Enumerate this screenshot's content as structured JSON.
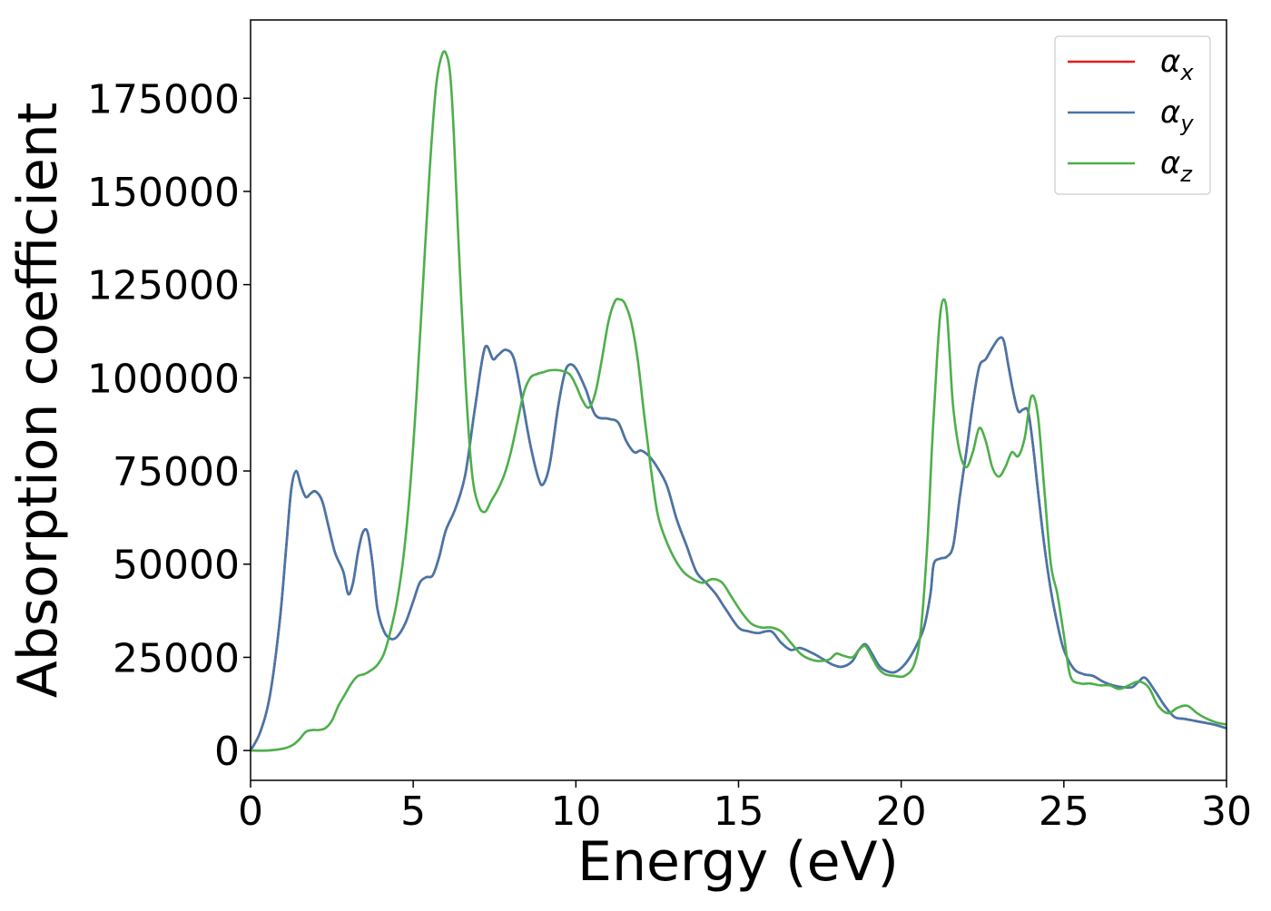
{
  "chart_data": {
    "type": "line",
    "title": "",
    "xlabel": "Energy (eV)",
    "ylabel": "Absorption coefficient",
    "xlim": [
      0,
      30
    ],
    "ylim": [
      -8000,
      196000
    ],
    "xticks": [
      0,
      5,
      10,
      15,
      20,
      25,
      30
    ],
    "yticks": [
      0,
      25000,
      50000,
      75000,
      100000,
      125000,
      150000,
      175000
    ],
    "grid": false,
    "legend_position": "top-right",
    "series": [
      {
        "name": "αx",
        "symbol": "α",
        "subscript": "x",
        "color": "#e41a1c",
        "x": [
          0,
          0.3,
          0.6,
          0.9,
          1.1,
          1.25,
          1.4,
          1.55,
          1.7,
          1.85,
          2.0,
          2.2,
          2.4,
          2.6,
          2.85,
          3.0,
          3.15,
          3.3,
          3.45,
          3.6,
          3.75,
          3.9,
          4.1,
          4.3,
          4.5,
          4.75,
          5.0,
          5.2,
          5.4,
          5.6,
          5.8,
          6.0,
          6.3,
          6.6,
          6.9,
          7.2,
          7.45,
          7.6,
          7.85,
          8.1,
          8.35,
          8.6,
          8.85,
          9.0,
          9.2,
          9.45,
          9.65,
          9.8,
          10.0,
          10.3,
          10.6,
          11.0,
          11.3,
          11.55,
          11.8,
          12.0,
          12.25,
          12.5,
          12.8,
          13.1,
          13.4,
          13.7,
          14.0,
          14.3,
          14.6,
          15.0,
          15.3,
          15.6,
          16.0,
          16.3,
          16.6,
          16.9,
          17.3,
          17.6,
          17.9,
          18.2,
          18.5,
          18.7,
          18.9,
          19.1,
          19.3,
          19.5,
          19.8,
          20.1,
          20.4,
          20.7,
          20.9,
          21.0,
          21.2,
          21.4,
          21.6,
          21.8,
          22.0,
          22.2,
          22.4,
          22.6,
          22.8,
          23.0,
          23.15,
          23.3,
          23.45,
          23.6,
          23.75,
          23.9,
          24.05,
          24.2,
          24.4,
          24.6,
          24.8,
          25.0,
          25.3,
          25.6,
          25.9,
          26.2,
          26.5,
          26.8,
          27.1,
          27.3,
          27.5,
          27.8,
          28.1,
          28.4,
          28.7,
          29.0,
          29.3,
          29.6,
          30.0
        ],
        "values": [
          0,
          5000,
          15000,
          35000,
          55000,
          70000,
          75000,
          71000,
          68000,
          69000,
          69500,
          67000,
          60000,
          53000,
          48000,
          42000,
          45000,
          53000,
          58500,
          58500,
          50000,
          38000,
          32000,
          30000,
          30500,
          34000,
          40000,
          45000,
          46500,
          47000,
          52000,
          59000,
          65000,
          74000,
          92000,
          108000,
          105000,
          106000,
          107500,
          105000,
          94000,
          82000,
          73000,
          71500,
          77000,
          92000,
          101000,
          103500,
          102500,
          97000,
          90000,
          89000,
          88000,
          83000,
          80000,
          80500,
          79000,
          76000,
          71000,
          62000,
          55000,
          48000,
          45000,
          42000,
          38000,
          33000,
          32000,
          31500,
          32000,
          29000,
          27000,
          27500,
          26000,
          24500,
          23000,
          22500,
          24000,
          27000,
          28500,
          26000,
          23000,
          21500,
          21000,
          23000,
          27000,
          33000,
          42000,
          50000,
          51500,
          52000,
          55000,
          68000,
          80000,
          93000,
          103000,
          105000,
          108000,
          110500,
          110000,
          103000,
          96000,
          91000,
          91500,
          91000,
          82000,
          70000,
          55000,
          43000,
          34000,
          27000,
          22000,
          20500,
          20000,
          18500,
          17500,
          17000,
          17000,
          18500,
          19500,
          16000,
          12000,
          9000,
          8500,
          8000,
          7500,
          7000,
          6000
        ],
        "visible_under_blue": true
      },
      {
        "name": "αy",
        "symbol": "α",
        "subscript": "y",
        "color": "#4477aa",
        "x": [
          0,
          0.3,
          0.6,
          0.9,
          1.1,
          1.25,
          1.4,
          1.55,
          1.7,
          1.85,
          2.0,
          2.2,
          2.4,
          2.6,
          2.85,
          3.0,
          3.15,
          3.3,
          3.45,
          3.6,
          3.75,
          3.9,
          4.1,
          4.3,
          4.5,
          4.75,
          5.0,
          5.2,
          5.4,
          5.6,
          5.8,
          6.0,
          6.3,
          6.6,
          6.9,
          7.2,
          7.45,
          7.6,
          7.85,
          8.1,
          8.35,
          8.6,
          8.85,
          9.0,
          9.2,
          9.45,
          9.65,
          9.8,
          10.0,
          10.3,
          10.6,
          11.0,
          11.3,
          11.55,
          11.8,
          12.0,
          12.25,
          12.5,
          12.8,
          13.1,
          13.4,
          13.7,
          14.0,
          14.3,
          14.6,
          15.0,
          15.3,
          15.6,
          16.0,
          16.3,
          16.6,
          16.9,
          17.3,
          17.6,
          17.9,
          18.2,
          18.5,
          18.7,
          18.9,
          19.1,
          19.3,
          19.5,
          19.8,
          20.1,
          20.4,
          20.7,
          20.9,
          21.0,
          21.2,
          21.4,
          21.6,
          21.8,
          22.0,
          22.2,
          22.4,
          22.6,
          22.8,
          23.0,
          23.15,
          23.3,
          23.45,
          23.6,
          23.75,
          23.9,
          24.05,
          24.2,
          24.4,
          24.6,
          24.8,
          25.0,
          25.3,
          25.6,
          25.9,
          26.2,
          26.5,
          26.8,
          27.1,
          27.3,
          27.5,
          27.8,
          28.1,
          28.4,
          28.7,
          29.0,
          29.3,
          29.6,
          30.0
        ],
        "values": [
          0,
          5000,
          15000,
          35000,
          55000,
          70000,
          75000,
          71000,
          68000,
          69000,
          69500,
          67000,
          60000,
          53000,
          48000,
          42000,
          45000,
          53000,
          58500,
          58500,
          50000,
          38000,
          32000,
          30000,
          30500,
          34000,
          40000,
          45000,
          46500,
          47000,
          52000,
          59000,
          65000,
          74000,
          92000,
          108000,
          105000,
          106000,
          107500,
          105000,
          94000,
          82000,
          73000,
          71500,
          77000,
          92000,
          101000,
          103500,
          102500,
          97000,
          90000,
          89000,
          88000,
          83000,
          80000,
          80500,
          79000,
          76000,
          71000,
          62000,
          55000,
          48000,
          45000,
          42000,
          38000,
          33000,
          32000,
          31500,
          32000,
          29000,
          27000,
          27500,
          26000,
          24500,
          23000,
          22500,
          24000,
          27000,
          28500,
          26000,
          23000,
          21500,
          21000,
          23000,
          27000,
          33000,
          42000,
          50000,
          51500,
          52000,
          55000,
          68000,
          80000,
          93000,
          103000,
          105000,
          108000,
          110500,
          110000,
          103000,
          96000,
          91000,
          91500,
          91000,
          82000,
          70000,
          55000,
          43000,
          34000,
          27000,
          22000,
          20500,
          20000,
          18500,
          17500,
          17000,
          17000,
          18500,
          19500,
          16000,
          12000,
          9000,
          8500,
          8000,
          7500,
          7000,
          6000
        ]
      },
      {
        "name": "αz",
        "symbol": "α",
        "subscript": "z",
        "color": "#4daf4a",
        "x": [
          0,
          0.5,
          1.0,
          1.3,
          1.5,
          1.7,
          1.9,
          2.1,
          2.3,
          2.5,
          2.7,
          2.9,
          3.1,
          3.3,
          3.5,
          3.7,
          3.9,
          4.1,
          4.3,
          4.5,
          4.7,
          4.9,
          5.1,
          5.3,
          5.5,
          5.7,
          5.9,
          6.05,
          6.15,
          6.25,
          6.4,
          6.6,
          6.8,
          7.0,
          7.2,
          7.4,
          7.6,
          7.8,
          8.0,
          8.2,
          8.4,
          8.6,
          8.8,
          9.0,
          9.2,
          9.5,
          9.8,
          10.0,
          10.2,
          10.4,
          10.6,
          10.8,
          11.0,
          11.2,
          11.35,
          11.5,
          11.7,
          11.9,
          12.1,
          12.3,
          12.5,
          12.7,
          13.0,
          13.3,
          13.6,
          13.9,
          14.2,
          14.5,
          14.8,
          15.1,
          15.4,
          15.7,
          16.0,
          16.3,
          16.6,
          16.9,
          17.2,
          17.5,
          17.8,
          18.0,
          18.2,
          18.5,
          18.7,
          18.9,
          19.1,
          19.3,
          19.5,
          19.8,
          20.1,
          20.4,
          20.6,
          20.8,
          20.95,
          21.1,
          21.2,
          21.3,
          21.4,
          21.5,
          21.6,
          21.8,
          22.0,
          22.2,
          22.4,
          22.6,
          22.8,
          23.0,
          23.2,
          23.4,
          23.6,
          23.8,
          24.0,
          24.2,
          24.4,
          24.6,
          24.8,
          25.0,
          25.2,
          25.5,
          25.8,
          26.1,
          26.4,
          26.7,
          27.0,
          27.3,
          27.6,
          27.9,
          28.2,
          28.5,
          28.8,
          29.1,
          29.4,
          29.7,
          30.0
        ],
        "values": [
          0,
          0,
          500,
          1500,
          3000,
          5000,
          5500,
          5500,
          6000,
          8000,
          12000,
          15000,
          18000,
          20000,
          20500,
          21500,
          23000,
          26000,
          32000,
          40000,
          52000,
          70000,
          95000,
          125000,
          155000,
          178000,
          187000,
          186000,
          180000,
          165000,
          135000,
          100000,
          75000,
          66000,
          64000,
          67000,
          70000,
          74000,
          80000,
          88000,
          96000,
          100000,
          101000,
          101500,
          102000,
          102000,
          101000,
          98000,
          94000,
          92000,
          96000,
          105000,
          115000,
          120500,
          121000,
          120000,
          115000,
          105000,
          90000,
          76000,
          64000,
          58000,
          52000,
          48000,
          46000,
          45000,
          46000,
          45000,
          41000,
          37000,
          34000,
          33000,
          33000,
          32000,
          29000,
          26000,
          24500,
          24000,
          24500,
          26000,
          25500,
          25000,
          27000,
          28000,
          25000,
          22000,
          20500,
          20000,
          20000,
          23000,
          32000,
          55000,
          82000,
          105000,
          117000,
          121000,
          118000,
          105000,
          92000,
          80000,
          76000,
          80000,
          86500,
          83000,
          76000,
          73500,
          76000,
          80000,
          79000,
          84000,
          95000,
          90000,
          70000,
          50000,
          42000,
          31000,
          20000,
          18000,
          18000,
          17500,
          17500,
          16500,
          17500,
          18500,
          17000,
          12000,
          10000,
          11500,
          12000,
          10000,
          8500,
          7500,
          7000
        ]
      }
    ]
  }
}
